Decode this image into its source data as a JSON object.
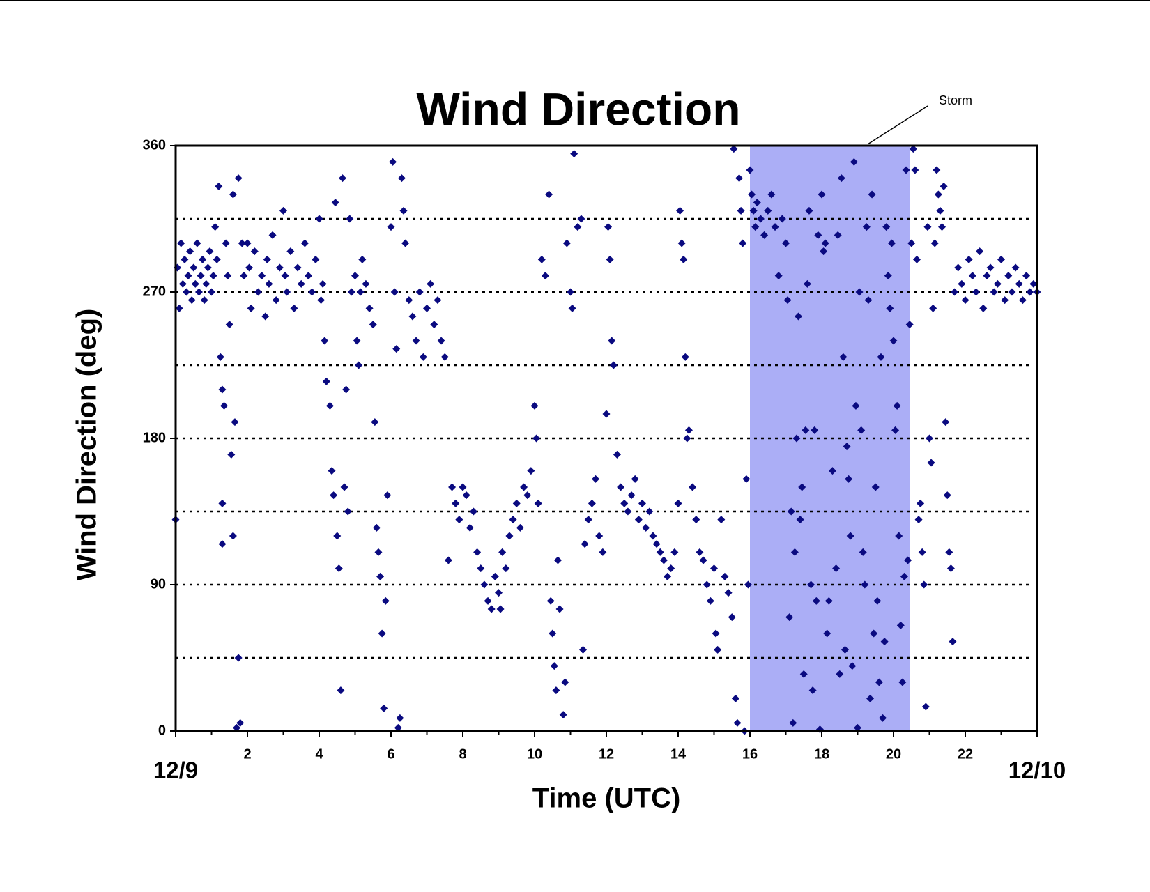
{
  "chart_data": {
    "type": "scatter",
    "title": "Wind Direction",
    "x_label": "Time (UTC)",
    "y_label": "Wind Direction (deg)",
    "annotation": "Storm",
    "shaded_span": [
      16,
      20.45
    ],
    "shade_color": "#abaef6",
    "color": "#0a0a80",
    "xlim": [
      0,
      24
    ],
    "ylim": [
      0,
      360
    ],
    "xticks": [
      {
        "value": 0,
        "label": "12/9"
      },
      2,
      4,
      6,
      8,
      10,
      12,
      14,
      16,
      18,
      20,
      22,
      {
        "value": 24,
        "label": "12/10"
      }
    ],
    "xminorticks": [
      1,
      3,
      5,
      7,
      9,
      11,
      13,
      15,
      17,
      19,
      21,
      23
    ],
    "yticks": [
      0,
      90,
      180,
      270,
      360
    ],
    "ygrid": [
      45,
      90,
      135,
      180,
      225,
      270,
      315
    ],
    "x": [
      0,
      0.05,
      0.1,
      0.15,
      0.2,
      0.25,
      0.3,
      0.35,
      0.4,
      0.45,
      0.5,
      0.55,
      0.6,
      0.65,
      0.7,
      0.75,
      0.8,
      0.85,
      0.9,
      0.95,
      1,
      1.05,
      1.1,
      1.15,
      1.2,
      1.25,
      1.3,
      1.3,
      1.3,
      1.35,
      1.4,
      1.45,
      1.5,
      1.55,
      1.6,
      1.6,
      1.65,
      1.7,
      1.75,
      1.75,
      1.8,
      1.85,
      1.9,
      2,
      2.05,
      2.1,
      2.2,
      2.3,
      2.4,
      2.5,
      2.55,
      2.6,
      2.7,
      2.8,
      2.9,
      3,
      3.05,
      3.1,
      3.2,
      3.3,
      3.4,
      3.5,
      3.6,
      3.7,
      3.8,
      3.9,
      4,
      4.05,
      4.1,
      4.15,
      4.2,
      4.3,
      4.35,
      4.4,
      4.45,
      4.5,
      4.55,
      4.6,
      4.65,
      4.7,
      4.75,
      4.8,
      4.85,
      4.9,
      5,
      5.05,
      5.1,
      5.15,
      5.2,
      5.3,
      5.4,
      5.5,
      5.55,
      5.6,
      5.65,
      5.7,
      5.75,
      5.8,
      5.85,
      5.9,
      6,
      6.05,
      6.1,
      6.15,
      6.2,
      6.25,
      6.3,
      6.35,
      6.4,
      6.5,
      6.6,
      6.7,
      6.8,
      6.9,
      7,
      7.1,
      7.2,
      7.3,
      7.4,
      7.5,
      7.6,
      7.7,
      7.8,
      7.9,
      8,
      8.1,
      8.2,
      8.3,
      8.4,
      8.5,
      8.6,
      8.7,
      8.8,
      8.9,
      9,
      9.05,
      9.1,
      9.2,
      9.3,
      9.4,
      9.5,
      9.6,
      9.7,
      9.8,
      9.9,
      10,
      10.05,
      10.1,
      10.2,
      10.3,
      10.4,
      10.45,
      10.5,
      10.55,
      10.6,
      10.65,
      10.7,
      10.8,
      10.85,
      10.9,
      11,
      11.05,
      11.1,
      11.2,
      11.3,
      11.35,
      11.4,
      11.5,
      11.6,
      11.7,
      11.8,
      11.9,
      12,
      12.05,
      12.1,
      12.15,
      12.2,
      12.3,
      12.4,
      12.5,
      12.6,
      12.7,
      12.8,
      12.9,
      13,
      13.1,
      13.2,
      13.3,
      13.4,
      13.5,
      13.6,
      13.7,
      13.8,
      13.9,
      14,
      14.05,
      14.1,
      14.15,
      14.2,
      14.25,
      14.3,
      14.4,
      14.5,
      14.6,
      14.7,
      14.8,
      14.9,
      15,
      15.05,
      15.1,
      15.2,
      15.3,
      15.4,
      15.5,
      15.55,
      15.6,
      15.65,
      15.7,
      15.75,
      15.8,
      15.85,
      15.9,
      15.95,
      16,
      16.05,
      16.1,
      16.15,
      16.2,
      16.3,
      16.4,
      16.5,
      16.6,
      16.7,
      16.8,
      16.9,
      17,
      17.05,
      17.1,
      17.15,
      17.2,
      17.25,
      17.3,
      17.35,
      17.4,
      17.45,
      17.5,
      17.55,
      17.6,
      17.65,
      17.7,
      17.75,
      17.8,
      17.85,
      17.9,
      17.95,
      18,
      18.05,
      18.1,
      18.15,
      18.2,
      18.3,
      18.4,
      18.45,
      18.5,
      18.55,
      18.6,
      18.65,
      18.7,
      18.75,
      18.8,
      18.85,
      18.9,
      18.95,
      19,
      19.05,
      19.1,
      19.15,
      19.2,
      19.25,
      19.3,
      19.35,
      19.4,
      19.45,
      19.5,
      19.55,
      19.6,
      19.65,
      19.7,
      19.75,
      19.8,
      19.85,
      19.9,
      19.95,
      20,
      20.05,
      20.1,
      20.15,
      20.2,
      20.25,
      20.3,
      20.35,
      20.4,
      20.45,
      20.5,
      20.55,
      20.6,
      20.65,
      20.7,
      20.75,
      20.8,
      20.85,
      20.9,
      20.95,
      21,
      21.05,
      21.1,
      21.15,
      21.2,
      21.25,
      21.3,
      21.35,
      21.4,
      21.45,
      21.5,
      21.55,
      21.6,
      21.65,
      21.7,
      21.8,
      21.9,
      22,
      22.1,
      22.2,
      22.3,
      22.4,
      22.5,
      22.6,
      22.7,
      22.8,
      22.9,
      23,
      23.1,
      23.2,
      23.3,
      23.4,
      23.5,
      23.6,
      23.7,
      23.8,
      23.9,
      24
    ],
    "values": [
      130,
      285,
      260,
      300,
      275,
      290,
      270,
      280,
      295,
      265,
      285,
      275,
      300,
      270,
      280,
      290,
      265,
      275,
      285,
      295,
      270,
      280,
      310,
      290,
      335,
      230,
      115,
      140,
      210,
      200,
      300,
      280,
      250,
      170,
      330,
      120,
      190,
      2,
      340,
      45,
      5,
      300,
      280,
      300,
      285,
      260,
      295,
      270,
      280,
      255,
      290,
      275,
      305,
      265,
      285,
      320,
      280,
      270,
      295,
      260,
      285,
      275,
      300,
      280,
      270,
      290,
      315,
      265,
      275,
      240,
      215,
      200,
      160,
      145,
      325,
      120,
      100,
      25,
      340,
      150,
      210,
      135,
      315,
      270,
      280,
      240,
      225,
      270,
      290,
      275,
      260,
      250,
      190,
      125,
      110,
      95,
      60,
      14,
      80,
      145,
      310,
      350,
      270,
      235,
      2,
      8,
      340,
      320,
      300,
      265,
      255,
      240,
      270,
      230,
      260,
      275,
      250,
      265,
      240,
      230,
      105,
      150,
      140,
      130,
      150,
      145,
      125,
      135,
      110,
      100,
      90,
      80,
      75,
      95,
      85,
      75,
      110,
      100,
      120,
      130,
      140,
      125,
      150,
      145,
      160,
      200,
      180,
      140,
      290,
      280,
      330,
      80,
      60,
      40,
      25,
      105,
      75,
      10,
      30,
      300,
      270,
      260,
      355,
      310,
      315,
      50,
      115,
      130,
      140,
      155,
      120,
      110,
      195,
      310,
      290,
      240,
      225,
      170,
      150,
      140,
      135,
      145,
      155,
      130,
      140,
      125,
      135,
      120,
      115,
      110,
      105,
      95,
      100,
      110,
      140,
      320,
      300,
      290,
      230,
      180,
      185,
      150,
      130,
      110,
      105,
      90,
      80,
      100,
      60,
      50,
      130,
      95,
      85,
      70,
      358,
      20,
      5,
      340,
      320,
      300,
      0,
      155,
      90,
      345,
      330,
      320,
      310,
      325,
      315,
      305,
      320,
      330,
      310,
      280,
      315,
      300,
      265,
      70,
      135,
      5,
      110,
      180,
      255,
      130,
      150,
      35,
      185,
      275,
      320,
      90,
      25,
      185,
      80,
      305,
      1,
      330,
      295,
      300,
      60,
      80,
      160,
      100,
      305,
      35,
      340,
      230,
      50,
      175,
      155,
      120,
      40,
      350,
      200,
      2,
      270,
      185,
      110,
      90,
      310,
      265,
      20,
      330,
      60,
      150,
      80,
      30,
      230,
      8,
      55,
      310,
      280,
      260,
      300,
      240,
      185,
      200,
      120,
      65,
      30,
      95,
      345,
      105,
      250,
      300,
      358,
      345,
      290,
      130,
      140,
      110,
      90,
      15,
      310,
      180,
      165,
      260,
      300,
      345,
      330,
      320,
      310,
      335,
      190,
      145,
      110,
      100,
      55,
      270,
      285,
      275,
      265,
      290,
      280,
      270,
      295,
      260,
      280,
      285,
      270,
      275,
      290,
      265,
      280,
      270,
      285,
      275,
      265,
      280,
      270,
      275,
      270
    ]
  }
}
